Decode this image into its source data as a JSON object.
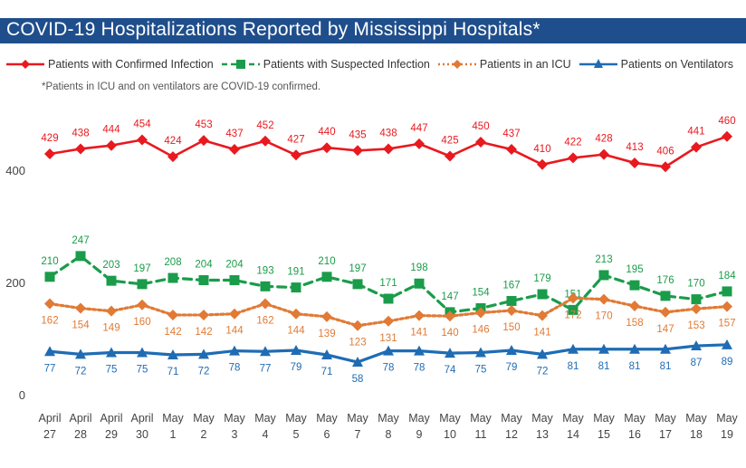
{
  "header": {
    "title": "COVID-19 Hospitalizations Reported by Mississippi Hospitals*",
    "footnote": "*Patients in ICU and on ventilators are COVID-19 confirmed."
  },
  "chart_data": {
    "type": "line",
    "title": "COVID-19 Hospitalizations Reported by Mississippi Hospitals*",
    "xlabel": "",
    "ylabel": "",
    "ylim": [
      0,
      500
    ],
    "yticks": [
      0,
      200,
      400
    ],
    "grid": false,
    "legend_position": "top",
    "categories": [
      {
        "top": "April",
        "bottom": "27"
      },
      {
        "top": "April",
        "bottom": "28"
      },
      {
        "top": "April",
        "bottom": "29"
      },
      {
        "top": "April",
        "bottom": "30"
      },
      {
        "top": "May",
        "bottom": "1"
      },
      {
        "top": "May",
        "bottom": "2"
      },
      {
        "top": "May",
        "bottom": "3"
      },
      {
        "top": "May",
        "bottom": "4"
      },
      {
        "top": "May",
        "bottom": "5"
      },
      {
        "top": "May",
        "bottom": "6"
      },
      {
        "top": "May",
        "bottom": "7"
      },
      {
        "top": "May",
        "bottom": "8"
      },
      {
        "top": "May",
        "bottom": "9"
      },
      {
        "top": "May",
        "bottom": "10"
      },
      {
        "top": "May",
        "bottom": "11"
      },
      {
        "top": "May",
        "bottom": "12"
      },
      {
        "top": "May",
        "bottom": "13"
      },
      {
        "top": "May",
        "bottom": "14"
      },
      {
        "top": "May",
        "bottom": "15"
      },
      {
        "top": "May",
        "bottom": "16"
      },
      {
        "top": "May",
        "bottom": "17"
      },
      {
        "top": "May",
        "bottom": "18"
      },
      {
        "top": "May",
        "bottom": "19"
      }
    ],
    "series": [
      {
        "name": "Patients with Confirmed Infection",
        "color": "#e8191f",
        "marker": "diamond",
        "dash": "solid",
        "label_position": "above",
        "values": [
          429,
          438,
          444,
          454,
          424,
          453,
          437,
          452,
          427,
          440,
          435,
          438,
          447,
          425,
          450,
          437,
          410,
          422,
          428,
          413,
          406,
          441,
          460
        ]
      },
      {
        "name": "Patients with Suspected Infection",
        "color": "#1a9c4a",
        "marker": "square",
        "dash": "dashed",
        "label_position": "above",
        "values": [
          210,
          247,
          203,
          197,
          208,
          204,
          204,
          193,
          191,
          210,
          197,
          171,
          198,
          147,
          154,
          167,
          179,
          151,
          213,
          195,
          176,
          170,
          184
        ]
      },
      {
        "name": "Patients in an ICU",
        "color": "#e07a35",
        "marker": "diamond",
        "dash": "dotted",
        "label_position": "below",
        "values": [
          162,
          154,
          149,
          160,
          142,
          142,
          144,
          162,
          144,
          139,
          123,
          131,
          141,
          140,
          146,
          150,
          141,
          172,
          170,
          158,
          147,
          153,
          157
        ]
      },
      {
        "name": "Patients on Ventilators",
        "color": "#1f6cb4",
        "marker": "triangle",
        "dash": "solid",
        "label_position": "below",
        "values": [
          77,
          72,
          75,
          75,
          71,
          72,
          78,
          77,
          79,
          71,
          58,
          78,
          78,
          74,
          75,
          79,
          72,
          81,
          81,
          81,
          81,
          87,
          89
        ]
      }
    ]
  }
}
